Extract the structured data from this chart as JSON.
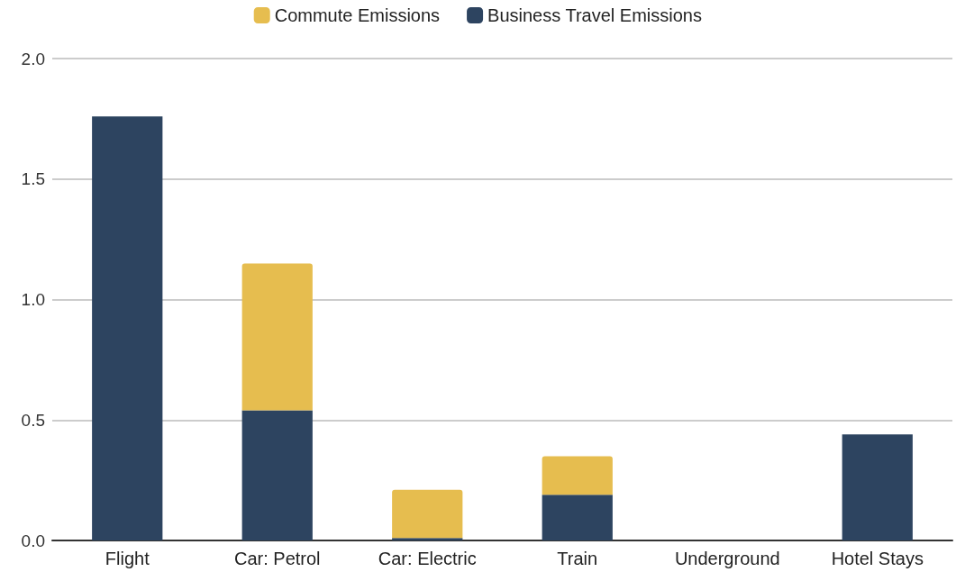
{
  "chart_data": {
    "type": "bar",
    "stacked": true,
    "categories": [
      "Flight",
      "Car: Petrol",
      "Car: Electric",
      "Train",
      "Underground",
      "Hotel Stays"
    ],
    "series": [
      {
        "name": "Business Travel Emissions",
        "color": "#2d4460",
        "values": [
          1.76,
          0.54,
          0.01,
          0.19,
          0,
          0.44
        ]
      },
      {
        "name": "Commute Emissions",
        "color": "#e6bd4f",
        "values": [
          0,
          0.61,
          0.2,
          0.16,
          0,
          0
        ]
      }
    ],
    "ylim": [
      0,
      2
    ],
    "yticks": [
      {
        "value": 0,
        "label": "0.0"
      },
      {
        "value": 0.5,
        "label": "0.5"
      },
      {
        "value": 1,
        "label": "1.0"
      },
      {
        "value": 1.5,
        "label": "1.5"
      },
      {
        "value": 2,
        "label": "2.0"
      }
    ],
    "grid": "y",
    "legend": "top"
  }
}
